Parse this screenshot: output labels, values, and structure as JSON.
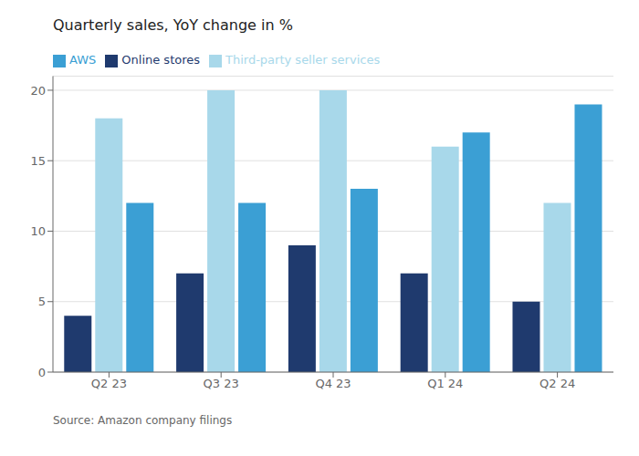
{
  "chart_data": {
    "type": "bar",
    "title": "Quarterly sales, YoY change in %",
    "categories": [
      "Q2 23",
      "Q3 23",
      "Q4 23",
      "Q1 24",
      "Q2 24"
    ],
    "series": [
      {
        "name": "Online stores",
        "color": "#1f3a6e",
        "values": [
          4,
          7,
          9,
          7,
          5
        ]
      },
      {
        "name": "Third-party seller services",
        "color": "#a8d8ea",
        "values": [
          18,
          20,
          20,
          16,
          12
        ]
      },
      {
        "name": "AWS",
        "color": "#3b9fd4",
        "values": [
          12,
          12,
          13,
          17,
          19
        ]
      }
    ],
    "ylim": [
      0,
      21
    ],
    "yticks": [
      0,
      5,
      10,
      15,
      20
    ],
    "grid": true,
    "legend": "top",
    "annotations": [
      "Source: Amazon company filings"
    ]
  }
}
